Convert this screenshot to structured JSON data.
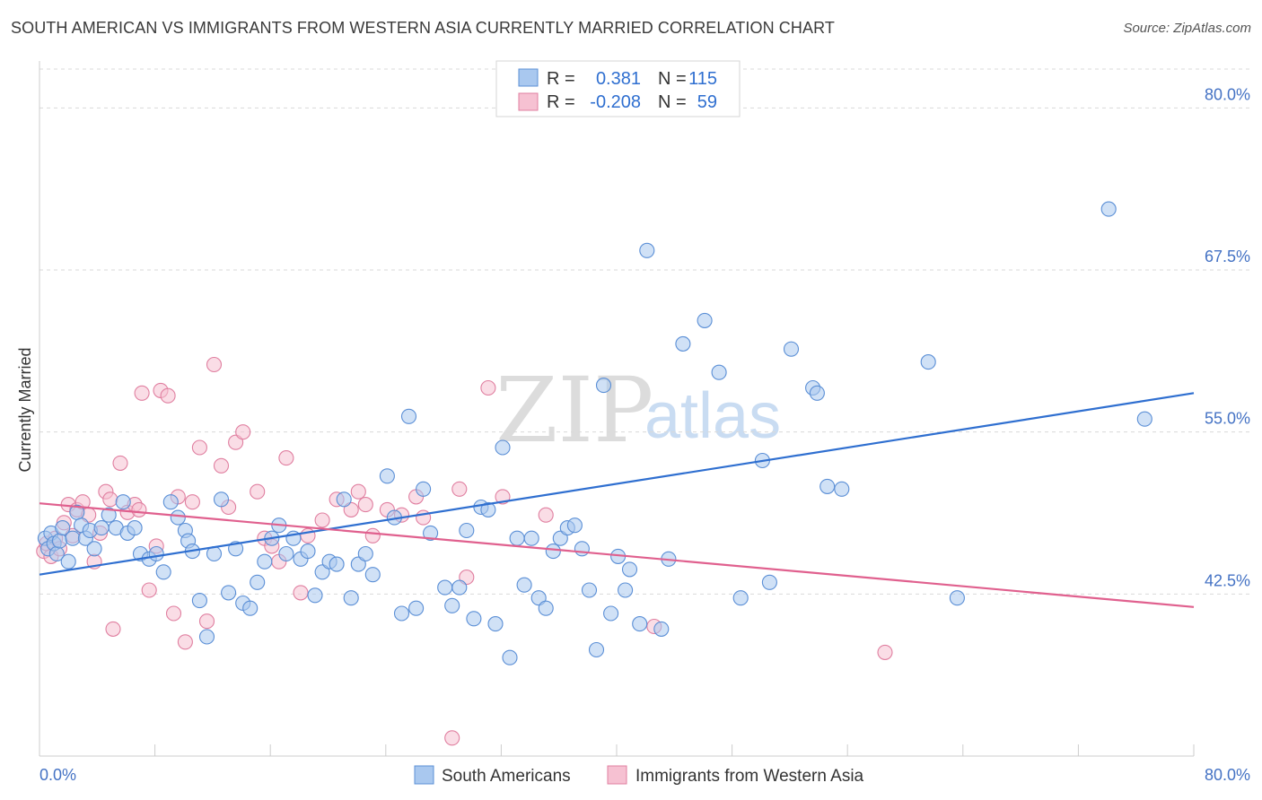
{
  "title": "SOUTH AMERICAN VS IMMIGRANTS FROM WESTERN ASIA CURRENTLY MARRIED CORRELATION CHART",
  "source": "Source: ZipAtlas.com",
  "watermark": {
    "zip": "ZIP",
    "atlas": "atlas"
  },
  "colors": {
    "blue_fill": "#a9c8ef",
    "blue_stroke": "#5b8fd6",
    "blue_line": "#2f6fd0",
    "pink_fill": "#f6c1d2",
    "pink_stroke": "#e07fa0",
    "pink_line": "#e0608e",
    "tick_label": "#4472c4",
    "grid": "#d9d9d9"
  },
  "legend": {
    "rows": [
      {
        "r_label": "R =",
        "r_value": "0.381",
        "n_label": "N =",
        "n_value": "115"
      },
      {
        "r_label": "R =",
        "r_value": "-0.208",
        "n_label": "N =",
        "n_value": "59"
      }
    ]
  },
  "chart_data": {
    "type": "scatter",
    "ylabel": "Currently Married",
    "xlabel": "",
    "xlim": [
      0,
      80
    ],
    "ylim": [
      30,
      83
    ],
    "x_tick_labels": [
      "0.0%",
      "80.0%"
    ],
    "y_ticks": [
      42.5,
      55.0,
      67.5,
      80.0
    ],
    "y_tick_labels": [
      "42.5%",
      "55.0%",
      "67.5%",
      "80.0%"
    ],
    "grid": "horizontal dashed",
    "legend_placement": "top-center",
    "series": [
      {
        "name": "South Americans",
        "color": "#5b8fd6",
        "trend": {
          "x": [
            0,
            80
          ],
          "y": [
            44.0,
            58.0
          ]
        },
        "points": [
          [
            0.4,
            46.8
          ],
          [
            0.6,
            46.0
          ],
          [
            0.8,
            47.2
          ],
          [
            1.0,
            46.4
          ],
          [
            1.2,
            45.6
          ],
          [
            1.4,
            46.6
          ],
          [
            1.6,
            47.6
          ],
          [
            2.0,
            45.0
          ],
          [
            2.3,
            46.8
          ],
          [
            2.6,
            48.8
          ],
          [
            2.9,
            47.8
          ],
          [
            3.2,
            46.8
          ],
          [
            3.5,
            47.4
          ],
          [
            3.8,
            46.0
          ],
          [
            4.3,
            47.6
          ],
          [
            4.8,
            48.6
          ],
          [
            5.3,
            47.6
          ],
          [
            5.8,
            49.6
          ],
          [
            6.1,
            47.2
          ],
          [
            6.6,
            47.6
          ],
          [
            7.0,
            45.6
          ],
          [
            7.6,
            45.2
          ],
          [
            8.1,
            45.6
          ],
          [
            8.6,
            44.2
          ],
          [
            9.1,
            49.6
          ],
          [
            9.6,
            48.4
          ],
          [
            10.1,
            47.4
          ],
          [
            10.3,
            46.6
          ],
          [
            10.6,
            45.8
          ],
          [
            11.1,
            42.0
          ],
          [
            11.6,
            39.2
          ],
          [
            12.1,
            45.6
          ],
          [
            12.6,
            49.8
          ],
          [
            13.1,
            42.6
          ],
          [
            13.6,
            46.0
          ],
          [
            14.1,
            41.8
          ],
          [
            14.6,
            41.4
          ],
          [
            15.1,
            43.4
          ],
          [
            15.6,
            45.0
          ],
          [
            16.1,
            46.8
          ],
          [
            16.6,
            47.8
          ],
          [
            17.1,
            45.6
          ],
          [
            17.6,
            46.8
          ],
          [
            18.1,
            45.2
          ],
          [
            18.6,
            45.8
          ],
          [
            19.1,
            42.4
          ],
          [
            19.6,
            44.2
          ],
          [
            20.1,
            45.0
          ],
          [
            20.6,
            44.8
          ],
          [
            21.1,
            49.8
          ],
          [
            21.6,
            42.2
          ],
          [
            22.1,
            44.8
          ],
          [
            22.6,
            45.6
          ],
          [
            23.1,
            44.0
          ],
          [
            24.1,
            51.6
          ],
          [
            24.6,
            48.4
          ],
          [
            25.1,
            41.0
          ],
          [
            25.6,
            56.2
          ],
          [
            26.1,
            41.4
          ],
          [
            26.6,
            50.6
          ],
          [
            27.1,
            47.2
          ],
          [
            28.1,
            43.0
          ],
          [
            28.6,
            41.6
          ],
          [
            29.1,
            43.0
          ],
          [
            29.6,
            47.4
          ],
          [
            30.1,
            40.6
          ],
          [
            30.6,
            49.2
          ],
          [
            31.1,
            49.0
          ],
          [
            31.6,
            40.2
          ],
          [
            32.1,
            53.8
          ],
          [
            32.6,
            37.6
          ],
          [
            33.1,
            46.8
          ],
          [
            33.6,
            43.2
          ],
          [
            34.1,
            46.8
          ],
          [
            34.6,
            42.2
          ],
          [
            35.1,
            41.4
          ],
          [
            35.6,
            45.8
          ],
          [
            36.1,
            46.8
          ],
          [
            36.6,
            47.6
          ],
          [
            37.1,
            47.8
          ],
          [
            37.6,
            46.0
          ],
          [
            38.1,
            42.8
          ],
          [
            38.6,
            38.2
          ],
          [
            39.1,
            58.6
          ],
          [
            39.6,
            41.0
          ],
          [
            40.1,
            45.4
          ],
          [
            40.6,
            42.8
          ],
          [
            40.9,
            44.4
          ],
          [
            41.6,
            40.2
          ],
          [
            42.1,
            69.0
          ],
          [
            43.1,
            39.8
          ],
          [
            43.6,
            45.2
          ],
          [
            44.6,
            61.8
          ],
          [
            46.1,
            63.6
          ],
          [
            47.1,
            59.6
          ],
          [
            48.6,
            42.2
          ],
          [
            50.1,
            52.8
          ],
          [
            50.6,
            43.4
          ],
          [
            52.1,
            61.4
          ],
          [
            53.6,
            58.4
          ],
          [
            53.9,
            58.0
          ],
          [
            54.6,
            50.8
          ],
          [
            55.6,
            50.6
          ],
          [
            61.6,
            60.4
          ],
          [
            63.6,
            42.2
          ],
          [
            74.1,
            72.2
          ],
          [
            76.6,
            56.0
          ]
        ]
      },
      {
        "name": "Immigrants from Western Asia",
        "color": "#e07fa0",
        "trend": {
          "x": [
            0,
            80
          ],
          "y": [
            49.5,
            41.5
          ]
        },
        "points": [
          [
            0.3,
            45.8
          ],
          [
            0.5,
            46.4
          ],
          [
            0.8,
            45.4
          ],
          [
            1.1,
            46.8
          ],
          [
            1.4,
            46.0
          ],
          [
            1.7,
            48.0
          ],
          [
            2.0,
            49.4
          ],
          [
            2.3,
            47.0
          ],
          [
            2.6,
            49.0
          ],
          [
            3.0,
            49.6
          ],
          [
            3.4,
            48.6
          ],
          [
            3.8,
            45.0
          ],
          [
            4.2,
            47.2
          ],
          [
            4.6,
            50.4
          ],
          [
            4.9,
            49.8
          ],
          [
            5.1,
            39.8
          ],
          [
            5.6,
            52.6
          ],
          [
            6.1,
            48.8
          ],
          [
            6.6,
            49.4
          ],
          [
            6.9,
            49.0
          ],
          [
            7.1,
            58.0
          ],
          [
            7.6,
            42.8
          ],
          [
            8.1,
            46.2
          ],
          [
            8.4,
            58.2
          ],
          [
            8.9,
            57.8
          ],
          [
            9.3,
            41.0
          ],
          [
            9.6,
            50.0
          ],
          [
            10.1,
            38.8
          ],
          [
            10.6,
            49.6
          ],
          [
            11.1,
            53.8
          ],
          [
            11.6,
            40.4
          ],
          [
            12.1,
            60.2
          ],
          [
            12.6,
            52.4
          ],
          [
            13.1,
            49.2
          ],
          [
            13.6,
            54.2
          ],
          [
            14.1,
            55.0
          ],
          [
            15.1,
            50.4
          ],
          [
            15.6,
            46.8
          ],
          [
            16.1,
            46.2
          ],
          [
            16.6,
            45.0
          ],
          [
            17.1,
            53.0
          ],
          [
            18.1,
            42.6
          ],
          [
            18.6,
            47.0
          ],
          [
            19.6,
            48.2
          ],
          [
            20.6,
            49.8
          ],
          [
            21.6,
            49.0
          ],
          [
            22.1,
            50.4
          ],
          [
            22.6,
            49.4
          ],
          [
            23.1,
            47.0
          ],
          [
            24.1,
            49.0
          ],
          [
            25.1,
            48.6
          ],
          [
            26.1,
            50.0
          ],
          [
            26.6,
            48.4
          ],
          [
            28.6,
            31.4
          ],
          [
            29.1,
            50.6
          ],
          [
            29.6,
            43.8
          ],
          [
            31.1,
            58.4
          ],
          [
            32.1,
            50.0
          ],
          [
            35.1,
            48.6
          ],
          [
            42.6,
            40.0
          ],
          [
            58.6,
            38.0
          ]
        ]
      }
    ]
  }
}
